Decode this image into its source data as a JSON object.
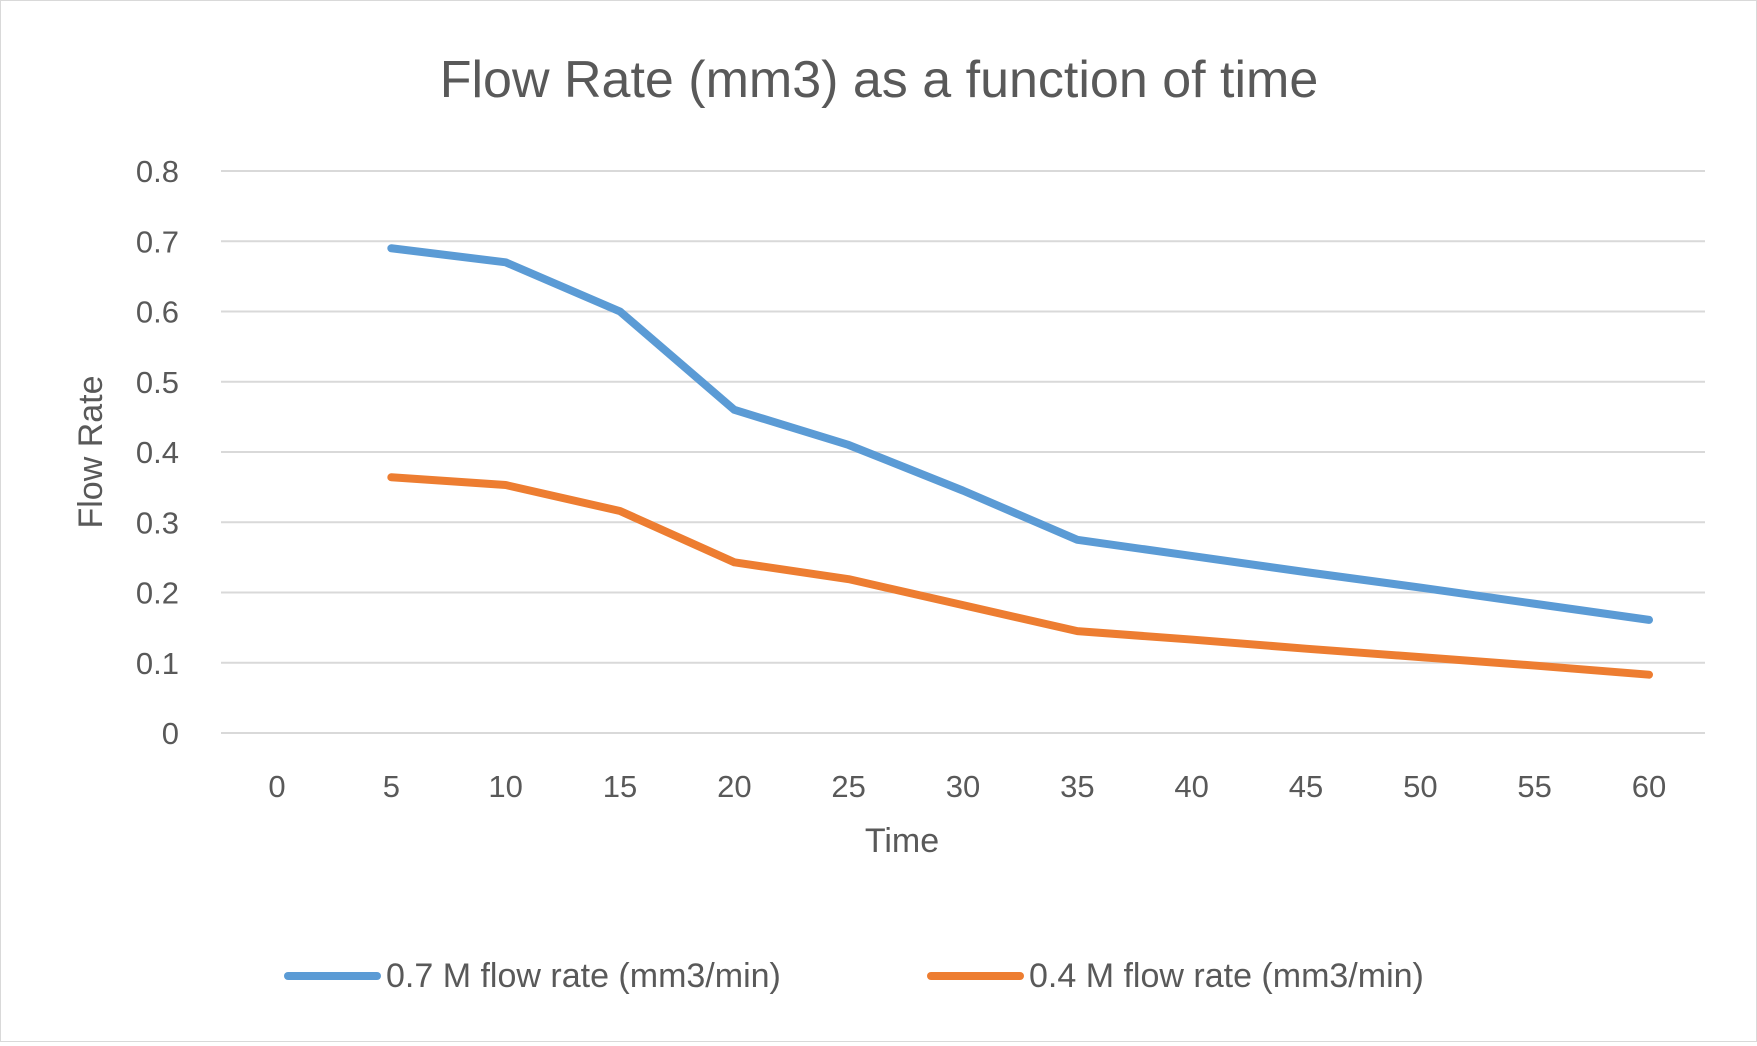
{
  "chart_data": {
    "type": "line",
    "title": "Flow Rate (mm3) as a function of time",
    "xlabel": "Time",
    "ylabel": "Flow Rate",
    "categories": [
      "0",
      "5",
      "10",
      "15",
      "20",
      "25",
      "30",
      "35",
      "40",
      "45",
      "50",
      "55",
      "60"
    ],
    "ylim": [
      0,
      0.8
    ],
    "yticks": [
      "0",
      "0.1",
      "0.2",
      "0.3",
      "0.4",
      "0.5",
      "0.6",
      "0.7",
      "0.8"
    ],
    "grid": true,
    "legend": "bottom",
    "series": [
      {
        "name": "0.7 M flow rate (mm3/min)",
        "color": "#5b9bd5",
        "values": [
          null,
          0.69,
          0.67,
          0.6,
          0.46,
          0.41,
          0.345,
          0.275,
          0.252,
          0.229,
          0.207,
          0.184,
          0.161
        ]
      },
      {
        "name": "0.4 M flow rate (mm3/min)",
        "color": "#ed7d31",
        "values": [
          null,
          0.364,
          0.353,
          0.316,
          0.243,
          0.219,
          0.182,
          0.145,
          0.133,
          0.12,
          0.108,
          0.096,
          0.083
        ]
      }
    ]
  }
}
